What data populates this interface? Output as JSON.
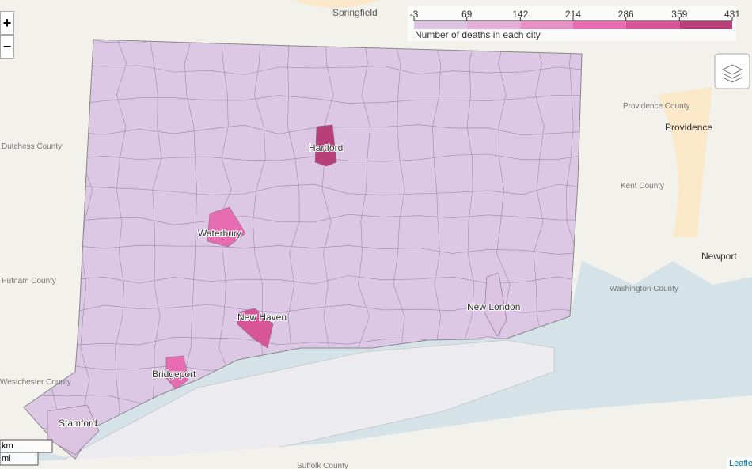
{
  "map": {
    "legend": {
      "title": "Number of deaths in each city",
      "ticks": [
        -3,
        69,
        142,
        214,
        286,
        359,
        431
      ],
      "colors": [
        "#dcc3e2",
        "#e2aed6",
        "#e690c6",
        "#e86cb2",
        "#d9559a",
        "#b83f78"
      ]
    },
    "cities": [
      {
        "name": "Hartford",
        "value": 400
      },
      {
        "name": "Waterbury",
        "value": 270
      },
      {
        "name": "New Haven",
        "value": 330
      },
      {
        "name": "Bridgeport",
        "value": 280
      },
      {
        "name": "Stamford",
        "value": 40
      },
      {
        "name": "New London",
        "value": 40
      }
    ],
    "places": [
      "Springfield",
      "Providence",
      "Newport",
      "Providence County",
      "Kent County",
      "Washington County",
      "Dutchess County",
      "Putnam County",
      "Westchester County",
      "Suffolk County"
    ],
    "controls": {
      "zoom_in": "+",
      "zoom_out": "−",
      "scale_km": "km",
      "scale_mi": "mi",
      "attribution": "Leaflet"
    }
  }
}
